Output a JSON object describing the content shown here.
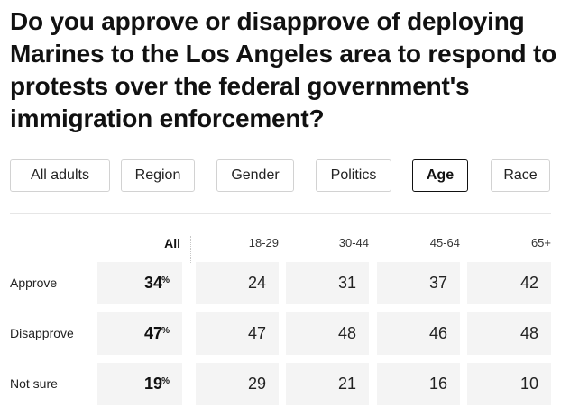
{
  "question": "Do you approve or disapprove of deploying Marines to the Los Angeles area to respond to protests over the federal government's immigration enforcement?",
  "tabs": [
    {
      "label": "All adults",
      "active": false
    },
    {
      "label": "Region",
      "active": false
    },
    {
      "label": "Gender",
      "active": false
    },
    {
      "label": "Politics",
      "active": false
    },
    {
      "label": "Age",
      "active": true
    },
    {
      "label": "Race",
      "active": false
    }
  ],
  "table": {
    "columns": [
      "All",
      "18-29",
      "30-44",
      "45-64",
      "65+"
    ],
    "percent_symbol": "%",
    "rows": [
      {
        "label": "Approve",
        "all": "34",
        "values": [
          "24",
          "31",
          "37",
          "42"
        ]
      },
      {
        "label": "Disapprove",
        "all": "47",
        "values": [
          "47",
          "48",
          "46",
          "48"
        ]
      },
      {
        "label": "Not sure",
        "all": "19",
        "values": [
          "29",
          "21",
          "16",
          "10"
        ]
      }
    ]
  }
}
